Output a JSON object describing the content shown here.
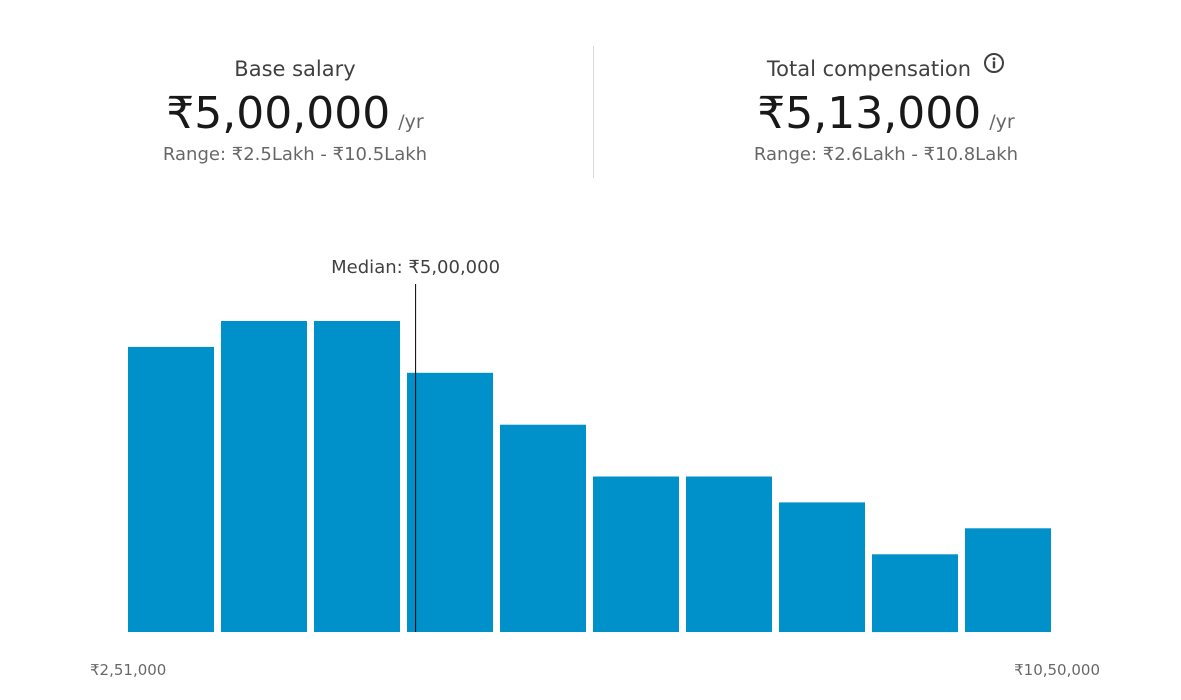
{
  "summary": {
    "base": {
      "title": "Base salary",
      "amount": "₹5,00,000",
      "unit": "/yr",
      "range": "Range: ₹2.5Lakh - ₹10.5Lakh"
    },
    "total": {
      "title": "Total compensation",
      "amount": "₹5,13,000",
      "unit": "/yr",
      "range": "Range: ₹2.6Lakh - ₹10.8Lakh",
      "icon": "info-icon"
    }
  },
  "chart_data": {
    "type": "bar",
    "title": "",
    "xlabel": "",
    "ylabel": "",
    "color": "#0091ca",
    "x_min": 251000,
    "x_max": 1050000,
    "x_min_label": "₹2,51,000",
    "x_max_label": "₹10,50,000",
    "median": 500000,
    "median_label": "Median: ₹5,00,000",
    "values": [
      11,
      12,
      12,
      10,
      8,
      6,
      6,
      5,
      3,
      4
    ],
    "ylim": [
      0,
      12
    ],
    "grid": false
  }
}
